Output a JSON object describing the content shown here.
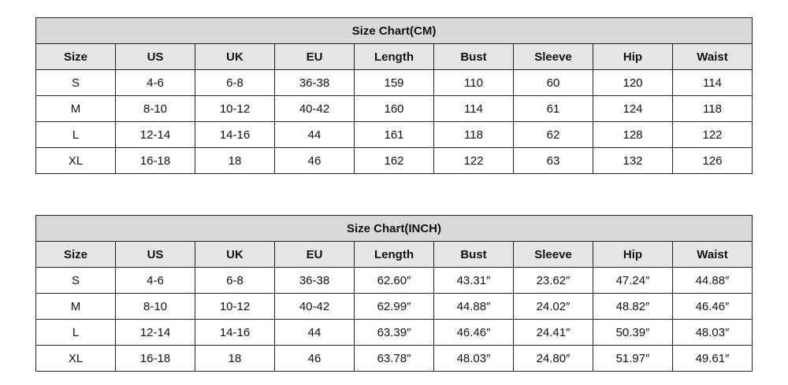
{
  "tables": [
    {
      "title": "Size Chart(CM)",
      "headers": [
        "Size",
        "US",
        "UK",
        "EU",
        "Length",
        "Bust",
        "Sleeve",
        "Hip",
        "Waist"
      ],
      "rows": [
        [
          "S",
          "4-6",
          "6-8",
          "36-38",
          "159",
          "110",
          "60",
          "120",
          "114"
        ],
        [
          "M",
          "8-10",
          "10-12",
          "40-42",
          "160",
          "114",
          "61",
          "124",
          "118"
        ],
        [
          "L",
          "12-14",
          "14-16",
          "44",
          "161",
          "118",
          "62",
          "128",
          "122"
        ],
        [
          "XL",
          "16-18",
          "18",
          "46",
          "162",
          "122",
          "63",
          "132",
          "126"
        ]
      ]
    },
    {
      "title": "Size Chart(INCH)",
      "headers": [
        "Size",
        "US",
        "UK",
        "EU",
        "Length",
        "Bust",
        "Sleeve",
        "Hip",
        "Waist"
      ],
      "rows": [
        [
          "S",
          "4-6",
          "6-8",
          "36-38",
          "62.60″",
          "43.31″",
          "23.62″",
          "47.24″",
          "44.88″"
        ],
        [
          "M",
          "8-10",
          "10-12",
          "40-42",
          "62.99″",
          "44.88″",
          "24.02″",
          "48.82″",
          "46.46″"
        ],
        [
          "L",
          "12-14",
          "14-16",
          "44",
          "63.39″",
          "46.46″",
          "24.41″",
          "50.39″",
          "48.03″"
        ],
        [
          "XL",
          "16-18",
          "18",
          "46",
          "63.78″",
          "48.03″",
          "24.80″",
          "51.97″",
          "49.61″"
        ]
      ]
    }
  ]
}
